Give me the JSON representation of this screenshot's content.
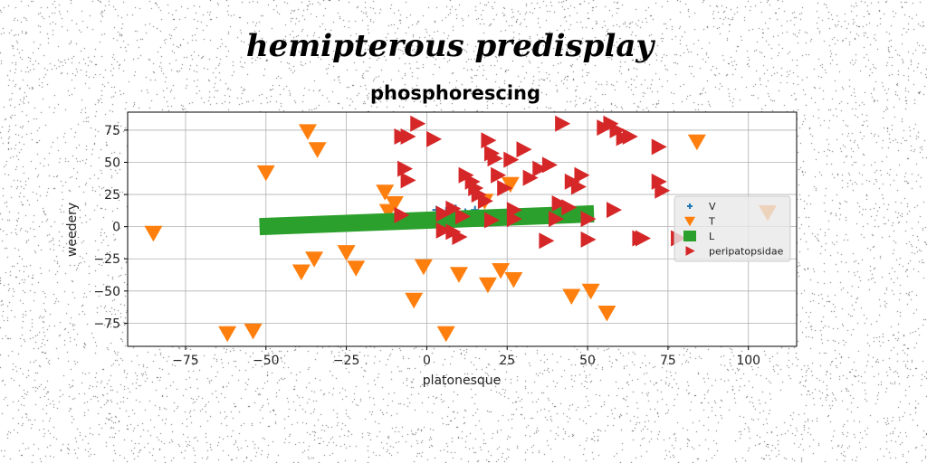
{
  "suptitle": "hemipterous predisplay",
  "chart_data": {
    "type": "scatter",
    "title": "phosphorescing",
    "xlabel": "platonesque",
    "ylabel": "weedery",
    "xlim": [
      -93,
      115
    ],
    "ylim": [
      -93,
      89
    ],
    "xticks": [
      -75,
      -50,
      -25,
      0,
      25,
      50,
      75,
      100
    ],
    "yticks": [
      -75,
      -50,
      -25,
      0,
      25,
      50,
      75
    ],
    "xtick_labels": [
      "−75",
      "−50",
      "−25",
      "0",
      "25",
      "50",
      "75",
      "100"
    ],
    "ytick_labels": [
      "−75",
      "−50",
      "−25",
      "0",
      "25",
      "50",
      "75"
    ],
    "grid": true,
    "legend_position": "right",
    "series": [
      {
        "name": "V",
        "marker": "plus",
        "color": "#1f77b4",
        "x": [
          3,
          6,
          9,
          12,
          15
        ],
        "y": [
          13,
          12,
          14,
          11,
          13
        ]
      },
      {
        "name": "T",
        "marker": "triangle-down",
        "color": "#ff7f0e",
        "x": [
          -85,
          -62,
          -54,
          -50,
          -37,
          -34,
          -35,
          -25,
          -22,
          -39,
          -13,
          -10,
          -12,
          -4,
          -1,
          6,
          10,
          19,
          23,
          27,
          45,
          51,
          56,
          84,
          106,
          18,
          26
        ],
        "y": [
          -5,
          -83,
          -81,
          42,
          74,
          60,
          -25,
          -20,
          -32,
          -35,
          27,
          18,
          12,
          -57,
          -31,
          -83,
          -37,
          -45,
          -34,
          -41,
          -54,
          -50,
          -67,
          66,
          11,
          20,
          33
        ]
      },
      {
        "name": "L",
        "marker": "square-line",
        "color": "#2ca02c",
        "x": [
          -52,
          52
        ],
        "y": [
          0,
          10
        ]
      },
      {
        "name": "peripatopsidae",
        "marker": "triangle-right",
        "color": "#d62728",
        "x": [
          -8,
          -6,
          -7,
          -6,
          -8,
          -3,
          2,
          5,
          8,
          10,
          12,
          14,
          15,
          16,
          18,
          19,
          20,
          21,
          22,
          24,
          26,
          27,
          30,
          32,
          35,
          38,
          40,
          42,
          45,
          47,
          48,
          50,
          55,
          57,
          59,
          61,
          63,
          66,
          67,
          72,
          73,
          78,
          72,
          44,
          50,
          58,
          41,
          37,
          27,
          20,
          11,
          8,
          5
        ],
        "y": [
          70,
          70,
          45,
          36,
          9,
          80,
          68,
          -3,
          -4,
          -8,
          40,
          35,
          30,
          25,
          20,
          67,
          57,
          53,
          40,
          30,
          52,
          13,
          60,
          38,
          45,
          48,
          6,
          80,
          35,
          31,
          40,
          6,
          77,
          80,
          75,
          69,
          70,
          -9,
          -9,
          62,
          28,
          -9,
          35,
          15,
          -10,
          13,
          18,
          -11,
          6,
          5,
          8,
          14,
          10
        ]
      }
    ]
  }
}
